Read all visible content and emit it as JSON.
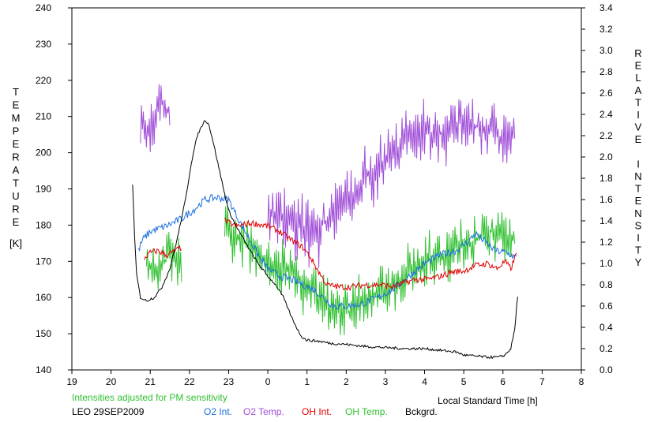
{
  "chart_data": {
    "type": "line",
    "station_date": "LEO 29SEP2009",
    "note": "Intensities adjusted for PM sensitivity",
    "xlabel": "Local Standard Time [h]",
    "ylabel_left_letters": [
      "T",
      "E",
      "M",
      "P",
      "E",
      "R",
      "A",
      "T",
      "U",
      "R",
      "E"
    ],
    "ylabel_left_unit": "[K]",
    "ylabel_right_letters": [
      "R",
      "E",
      "L",
      "A",
      "T",
      "I",
      "V",
      "E",
      "",
      "I",
      "N",
      "T",
      "E",
      "N",
      "S",
      "I",
      "T",
      "Y"
    ],
    "x_axis": {
      "min": 19,
      "max": 32,
      "ticks": [
        19,
        20,
        21,
        22,
        23,
        24,
        25,
        26,
        27,
        28,
        29,
        30,
        31,
        32
      ],
      "tick_labels": [
        "19",
        "20",
        "21",
        "22",
        "23",
        "0",
        "1",
        "2",
        "3",
        "4",
        "5",
        "6",
        "7",
        "8"
      ]
    },
    "y_left": {
      "min": 140,
      "max": 240,
      "ticks": [
        140,
        150,
        160,
        170,
        180,
        190,
        200,
        210,
        220,
        230,
        240
      ],
      "tick_labels": [
        "140",
        "150",
        "160",
        "170",
        "180",
        "190",
        "200",
        "210",
        "220",
        "230",
        "240"
      ]
    },
    "y_right": {
      "min": 0,
      "max": 3.4,
      "ticks": [
        0,
        0.2,
        0.4,
        0.6,
        0.8,
        1.0,
        1.2,
        1.4,
        1.6,
        1.8,
        2.0,
        2.2,
        2.4,
        2.6,
        2.8,
        3.0,
        3.2,
        3.4
      ],
      "tick_labels": [
        "0.0",
        "0.2",
        "0.4",
        "0.6",
        "0.8",
        "1.0",
        "1.2",
        "1.4",
        "1.6",
        "1.8",
        "2.0",
        "2.2",
        "2.4",
        "2.6",
        "2.8",
        "3.0",
        "3.2",
        "3.4"
      ]
    },
    "legend": [
      {
        "label": "O2 Int.",
        "color": "#1a6fe0"
      },
      {
        "label": "O2 Temp.",
        "color": "#a04ed8"
      },
      {
        "label": "OH Int.",
        "color": "#e00000"
      },
      {
        "label": "OH Temp.",
        "color": "#30c030"
      },
      {
        "label": "Bckgrd.",
        "color": "#000000"
      }
    ],
    "series": [
      {
        "name": "Bckgrd.",
        "axis": "right",
        "color": "#000000",
        "noise": 0.012,
        "points": [
          [
            20.55,
            1.75
          ],
          [
            20.6,
            1.25
          ],
          [
            20.65,
            0.9
          ],
          [
            20.75,
            0.68
          ],
          [
            20.9,
            0.65
          ],
          [
            21.1,
            0.68
          ],
          [
            21.3,
            0.78
          ],
          [
            21.5,
            0.95
          ],
          [
            21.7,
            1.25
          ],
          [
            21.9,
            1.6
          ],
          [
            22.05,
            1.95
          ],
          [
            22.2,
            2.2
          ],
          [
            22.3,
            2.28
          ],
          [
            22.4,
            2.35
          ],
          [
            22.5,
            2.3
          ],
          [
            22.6,
            2.15
          ],
          [
            22.75,
            1.9
          ],
          [
            22.9,
            1.65
          ],
          [
            23.0,
            1.5
          ],
          [
            23.15,
            1.38
          ],
          [
            23.3,
            1.28
          ],
          [
            23.5,
            1.15
          ],
          [
            23.75,
            1.0
          ],
          [
            24.0,
            0.88
          ],
          [
            24.2,
            0.8
          ],
          [
            24.4,
            0.68
          ],
          [
            24.6,
            0.5
          ],
          [
            24.8,
            0.35
          ],
          [
            24.9,
            0.3
          ],
          [
            25.0,
            0.28
          ],
          [
            25.3,
            0.27
          ],
          [
            25.6,
            0.25
          ],
          [
            26.0,
            0.24
          ],
          [
            26.5,
            0.22
          ],
          [
            27.0,
            0.21
          ],
          [
            27.5,
            0.2
          ],
          [
            28.0,
            0.2
          ],
          [
            28.5,
            0.18
          ],
          [
            28.8,
            0.17
          ],
          [
            29.0,
            0.14
          ],
          [
            29.3,
            0.13
          ],
          [
            29.6,
            0.12
          ],
          [
            29.9,
            0.12
          ],
          [
            30.05,
            0.14
          ],
          [
            30.2,
            0.2
          ],
          [
            30.3,
            0.38
          ],
          [
            30.38,
            0.72
          ]
        ]
      },
      {
        "name": "O2 Int.",
        "axis": "right",
        "color": "#1a6fe0",
        "noise": 0.035,
        "points": [
          [
            20.7,
            1.12
          ],
          [
            20.8,
            1.22
          ],
          [
            21.0,
            1.3
          ],
          [
            21.4,
            1.35
          ],
          [
            21.8,
            1.42
          ],
          [
            22.1,
            1.5
          ],
          [
            22.4,
            1.6
          ],
          [
            22.7,
            1.62
          ],
          [
            23.0,
            1.6
          ],
          [
            23.2,
            1.45
          ],
          [
            23.5,
            1.25
          ],
          [
            23.8,
            1.05
          ],
          [
            24.0,
            0.95
          ],
          [
            24.3,
            0.88
          ],
          [
            24.6,
            0.85
          ],
          [
            24.9,
            0.8
          ],
          [
            25.2,
            0.75
          ],
          [
            25.5,
            0.65
          ],
          [
            25.7,
            0.6
          ],
          [
            26.0,
            0.6
          ],
          [
            26.4,
            0.62
          ],
          [
            26.8,
            0.68
          ],
          [
            27.2,
            0.76
          ],
          [
            27.6,
            0.88
          ],
          [
            28.0,
            1.0
          ],
          [
            28.4,
            1.08
          ],
          [
            28.8,
            1.12
          ],
          [
            29.1,
            1.2
          ],
          [
            29.3,
            1.28
          ],
          [
            29.5,
            1.22
          ],
          [
            29.8,
            1.12
          ],
          [
            30.1,
            1.1
          ],
          [
            30.35,
            1.05
          ]
        ]
      },
      {
        "name": "OH Int.",
        "axis": "right",
        "color": "#e00000",
        "noise": 0.03,
        "points": [
          [
            20.85,
            1.05
          ],
          [
            21.0,
            1.1
          ],
          [
            21.2,
            1.12
          ],
          [
            21.4,
            1.08
          ],
          [
            21.55,
            1.1
          ],
          [
            21.8,
            1.15
          ]
        ]
      },
      {
        "name": "OH Int.",
        "axis": "right",
        "color": "#e00000",
        "noise": 0.03,
        "points": [
          [
            22.9,
            1.4
          ],
          [
            23.2,
            1.35
          ],
          [
            23.6,
            1.38
          ],
          [
            24.0,
            1.35
          ],
          [
            24.3,
            1.3
          ],
          [
            24.6,
            1.22
          ],
          [
            24.9,
            1.15
          ],
          [
            25.1,
            1.05
          ],
          [
            25.3,
            0.92
          ],
          [
            25.5,
            0.8
          ],
          [
            25.8,
            0.78
          ],
          [
            26.1,
            0.78
          ],
          [
            26.5,
            0.8
          ],
          [
            26.9,
            0.8
          ],
          [
            27.2,
            0.78
          ],
          [
            27.5,
            0.82
          ],
          [
            27.8,
            0.85
          ],
          [
            28.1,
            0.85
          ],
          [
            28.4,
            0.88
          ],
          [
            28.7,
            0.92
          ],
          [
            29.0,
            0.93
          ],
          [
            29.3,
            0.98
          ],
          [
            29.6,
            1.0
          ],
          [
            29.85,
            0.95
          ],
          [
            30.05,
            1.02
          ],
          [
            30.2,
            0.95
          ],
          [
            30.35,
            1.1
          ]
        ]
      },
      {
        "name": "O2 Temp.",
        "axis": "left",
        "color": "#a04ed8",
        "noise": 7,
        "points": [
          [
            20.75,
            212
          ],
          [
            20.9,
            205
          ],
          [
            21.1,
            210
          ],
          [
            21.3,
            214
          ],
          [
            21.45,
            212
          ],
          [
            21.5,
            210
          ]
        ]
      },
      {
        "name": "O2 Temp.",
        "axis": "left",
        "color": "#a04ed8",
        "noise": 8,
        "points": [
          [
            24.0,
            182
          ],
          [
            24.3,
            183
          ],
          [
            24.6,
            181
          ],
          [
            24.9,
            180
          ],
          [
            25.2,
            178
          ],
          [
            25.5,
            181
          ],
          [
            25.8,
            186
          ],
          [
            26.1,
            188
          ],
          [
            26.4,
            192
          ],
          [
            26.7,
            195
          ],
          [
            27.0,
            198
          ],
          [
            27.3,
            200
          ],
          [
            27.6,
            205
          ],
          [
            27.9,
            206
          ],
          [
            28.2,
            205
          ],
          [
            28.5,
            206
          ],
          [
            28.8,
            208
          ],
          [
            29.1,
            208
          ],
          [
            29.4,
            207
          ],
          [
            29.7,
            206
          ],
          [
            30.0,
            204
          ],
          [
            30.3,
            206
          ]
        ]
      },
      {
        "name": "OH Temp.",
        "axis": "left",
        "color": "#30c030",
        "noise": 6,
        "points": [
          [
            20.9,
            170
          ],
          [
            21.2,
            168
          ],
          [
            21.5,
            172
          ],
          [
            21.8,
            170
          ]
        ]
      },
      {
        "name": "OH Temp.",
        "axis": "left",
        "color": "#30c030",
        "noise": 7,
        "points": [
          [
            22.9,
            180
          ],
          [
            23.3,
            176
          ],
          [
            23.7,
            172
          ],
          [
            24.1,
            170
          ],
          [
            24.5,
            168
          ],
          [
            24.9,
            164
          ],
          [
            25.3,
            160
          ],
          [
            25.7,
            157
          ],
          [
            26.1,
            156
          ],
          [
            26.5,
            160
          ],
          [
            26.9,
            162
          ],
          [
            27.3,
            164
          ],
          [
            27.7,
            168
          ],
          [
            28.1,
            170
          ],
          [
            28.5,
            172
          ],
          [
            28.9,
            174
          ],
          [
            29.3,
            176
          ],
          [
            29.7,
            178
          ],
          [
            30.0,
            177
          ],
          [
            30.3,
            176
          ]
        ]
      }
    ]
  }
}
